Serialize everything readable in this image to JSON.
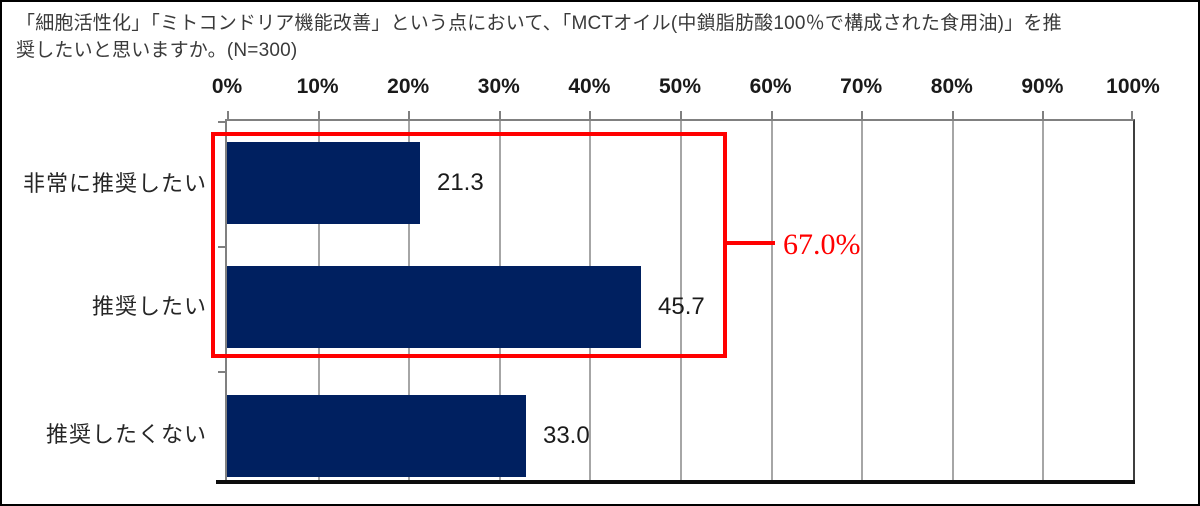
{
  "title": {
    "lines": [
      "「細胞活性化」「ミトコンドリア機能改善」という点において、「MCTオイル(中鎖脂肪酸100％で構成された食用油)」を推",
      "奨したいと思いますか。(N=300)"
    ]
  },
  "chart_data": {
    "type": "bar",
    "orientation": "horizontal",
    "title": "「細胞活性化」「ミトコンドリア機能改善」という点において、「MCTオイル(中鎖脂肪酸100％で構成された食用油)」を推奨したいと思いますか。(N=300)",
    "sample_size_label": "(N=300)",
    "categories": [
      "非常に推奨したい",
      "推奨したい",
      "推奨したくない"
    ],
    "values": [
      21.3,
      45.7,
      33.0
    ],
    "value_labels": [
      "21.3",
      "45.7",
      "33.0"
    ],
    "xlim": [
      0,
      100
    ],
    "x_tick_labels": [
      "0%",
      "10%",
      "20%",
      "30%",
      "40%",
      "50%",
      "60%",
      "70%",
      "80%",
      "90%",
      "100%"
    ],
    "grid": true,
    "legend": "none",
    "bar_color": "#002060",
    "gridline_color": "#a6a6a6",
    "axis_color": "#808080",
    "annotation": {
      "label": "67.0%",
      "color": "#ff0000",
      "covers_categories": [
        "非常に推奨したい",
        "推奨したい"
      ]
    }
  }
}
